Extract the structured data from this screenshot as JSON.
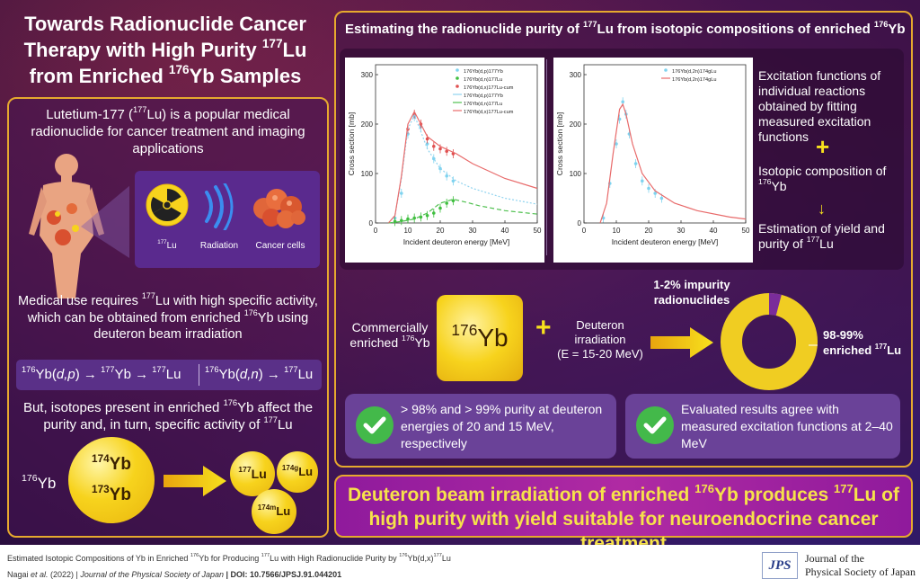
{
  "title": {
    "line1": "Towards Radionuclide Cancer",
    "line2_pre": "Therapy with High Purity ",
    "line2_sup": "177",
    "line2_post": "Lu",
    "line3_pre": "from Enriched ",
    "line3_sup": "176",
    "line3_post": "Yb Samples"
  },
  "left": {
    "intro_pre": "Lutetium-177 (",
    "intro_sup": "177",
    "intro_post": "Lu) is a popular medical radionuclide for cancer treatment and imaging applications",
    "icons": {
      "lu_sup": "177",
      "lu_label": "Lu",
      "radiation_label": "Radiation",
      "cells_label": "Cancer cells"
    },
    "medical_a": "Medical use requires ",
    "medical_sup1": "177",
    "medical_b": "Lu with high specific activity, which can be obtained from enriched ",
    "medical_sup2": "176",
    "medical_c": "Yb using deuteron beam irradiation",
    "reaction1": {
      "sup1": "176",
      "a": "Yb(",
      "b": "d,p",
      "c": ") → ",
      "sup2": "177",
      "d": "Yb → ",
      "sup3": "177",
      "e": "Lu"
    },
    "reaction2": {
      "sup1": "176",
      "a": "Yb(",
      "b": "d,n",
      "c": ") → ",
      "sup2": "177",
      "d": "Lu"
    },
    "but_a": "But, isotopes present in enriched ",
    "but_sup1": "176",
    "but_b": "Yb affect the purity and, in turn, specific activity of ",
    "but_sup2": "177",
    "but_c": "Lu",
    "yb176": {
      "sup": "176",
      "text": "Yb"
    },
    "yb174": {
      "sup": "174",
      "text": "Yb"
    },
    "yb173": {
      "sup": "173",
      "text": "Yb"
    },
    "lu177": {
      "sup": "177",
      "text": "Lu"
    },
    "lu174g": {
      "sup": "174g",
      "text": "Lu"
    },
    "lu174m": {
      "sup": "174m",
      "text": "Lu"
    }
  },
  "right": {
    "title_a": "Estimating the radionuclide purity of ",
    "title_sup1": "177",
    "title_b": "Lu from isotopic compositions of enriched ",
    "title_sup2": "176",
    "title_c": "Yb",
    "flow1": "Excitation functions of individual reactions obtained by fitting measured excitation functions",
    "flow2_a": "Isotopic composition of ",
    "flow2_sup": "176",
    "flow2_b": "Yb",
    "flow3_a": "Estimation of yield and purity of ",
    "flow3_sup": "177",
    "flow3_b": "Lu",
    "commercial_a": "Commercially enriched ",
    "commercial_sup": "176",
    "commercial_b": "Yb",
    "big_yb_sup": "176",
    "big_yb": "Yb",
    "deuteron_line1": "Deuteron",
    "deuteron_line2": "irradiation",
    "deuteron_line3": "(E = 15-20 MeV)",
    "impurity": "1-2% impurity radionuclides",
    "enriched_a": "98-99% enriched ",
    "enriched_sup": "177",
    "enriched_b": "Lu",
    "card1": "> 98% and > 99% purity at deuteron energies of 20 and 15 MeV, respectively",
    "card2": "Evaluated results agree with measured excitation functions at 2–40 MeV"
  },
  "conclusion": {
    "a": "Deuteron beam irradiation of enriched ",
    "sup1": "176",
    "b": "Yb produces ",
    "sup2": "177",
    "c": "Lu of high purity with yield suitable for neuroendocrine cancer treatment"
  },
  "footer": {
    "citation1_a": "Estimated Isotopic Compositions of Yb in Enriched ",
    "citation1_sup1": "176",
    "citation1_b": "Yb for Producing ",
    "citation1_sup2": "177",
    "citation1_c": "Lu with High Radionuclide Purity by ",
    "citation1_sup3": "176",
    "citation1_d": "Yb(d,x)",
    "citation1_sup4": "177",
    "citation1_e": "Lu",
    "citation2_a": "Nagai ",
    "citation2_b": "et al.",
    "citation2_c": " (2022) | ",
    "citation2_d": "Journal of the Physical Society of Japan",
    "citation2_e": " | DOI: 10.7566/JPSJ.91.044201",
    "logo": "JPS",
    "journal_line1": "Journal of the",
    "journal_line2": "Physical Society of Japan"
  },
  "chart_data": [
    {
      "type": "line",
      "xlabel": "Incident deuteron energy [MeV]",
      "ylabel": "Cross section [mb]",
      "xlim": [
        0,
        50
      ],
      "ylim": [
        0,
        320
      ],
      "x_ticks": [
        0,
        10,
        20,
        30,
        40,
        50
      ],
      "y_ticks": [
        0,
        100,
        200,
        300
      ],
      "legend": [
        "176Yb(d,p)177Yb",
        "176Yb(d,n)177Lu",
        "176Yb(d,x)177Lu-cum",
        "176Yb(d,p)177Yb",
        "176Yb(d,n)177Lu",
        "176Yb(d,x)177Lu-cum"
      ],
      "legend_position": "top-right",
      "series": [
        {
          "name": "176Yb(d,p)177Yb",
          "kind": "measured",
          "x": [
            6,
            8,
            10,
            12,
            14,
            16,
            18,
            20,
            22,
            24
          ],
          "y": [
            10,
            60,
            180,
            215,
            195,
            160,
            130,
            110,
            95,
            85
          ]
        },
        {
          "name": "176Yb(d,n)177Lu",
          "kind": "measured",
          "x": [
            6,
            8,
            10,
            12,
            14,
            16,
            18,
            20,
            22,
            24
          ],
          "y": [
            3,
            5,
            8,
            10,
            12,
            15,
            20,
            30,
            40,
            45
          ]
        },
        {
          "name": "176Yb(d,x)177Lu-cum",
          "kind": "measured",
          "x": [
            10,
            12,
            14,
            16,
            18,
            20,
            22,
            24
          ],
          "y": [
            190,
            220,
            200,
            170,
            155,
            150,
            145,
            140
          ]
        },
        {
          "name": "176Yb(d,p)177Yb",
          "kind": "fit",
          "x": [
            4,
            6,
            8,
            10,
            12,
            14,
            16,
            20,
            25,
            30,
            40,
            50
          ],
          "y": [
            0,
            15,
            90,
            190,
            218,
            185,
            150,
            110,
            85,
            70,
            50,
            38
          ]
        },
        {
          "name": "176Yb(d,n)177Lu",
          "kind": "fit",
          "x": [
            4,
            8,
            12,
            16,
            20,
            24,
            28,
            32,
            40,
            50
          ],
          "y": [
            0,
            3,
            8,
            20,
            40,
            48,
            42,
            35,
            25,
            18
          ]
        },
        {
          "name": "176Yb(d,x)177Lu-cum",
          "kind": "fit",
          "x": [
            4,
            6,
            8,
            10,
            12,
            14,
            16,
            20,
            25,
            30,
            40,
            50
          ],
          "y": [
            0,
            15,
            95,
            200,
            225,
            200,
            175,
            155,
            140,
            120,
            90,
            70
          ]
        }
      ]
    },
    {
      "type": "line",
      "xlabel": "Incident deuteron energy [MeV]",
      "ylabel": "Cross section [mb]",
      "xlim": [
        0,
        50
      ],
      "ylim": [
        0,
        320
      ],
      "x_ticks": [
        0,
        10,
        20,
        30,
        40,
        50
      ],
      "y_ticks": [
        0,
        100,
        200,
        300
      ],
      "legend": [
        "176Yb(d,2n)174gLu",
        "176Yb(d,2n)174gLu"
      ],
      "legend_position": "top-right",
      "series": [
        {
          "name": "176Yb(d,2n)174gLu",
          "kind": "measured",
          "x": [
            6,
            8,
            10,
            11,
            12,
            13,
            14,
            16,
            18,
            20,
            22,
            24
          ],
          "y": [
            10,
            80,
            160,
            210,
            245,
            220,
            180,
            120,
            85,
            70,
            60,
            50
          ]
        },
        {
          "name": "176Yb(d,2n)174gLu",
          "kind": "fit",
          "x": [
            5,
            7,
            9,
            11,
            12,
            13,
            15,
            18,
            22,
            28,
            35,
            45,
            50
          ],
          "y": [
            0,
            40,
            140,
            230,
            240,
            220,
            160,
            100,
            65,
            40,
            25,
            12,
            8
          ]
        }
      ]
    }
  ]
}
